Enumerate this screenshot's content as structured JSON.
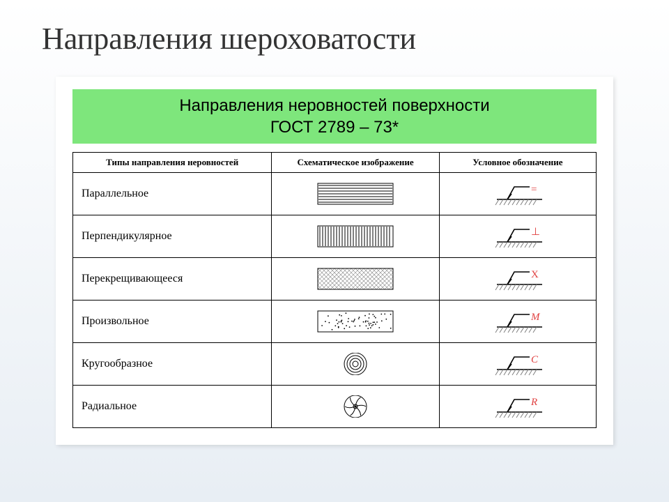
{
  "slide_title": "Направления шероховатости",
  "green_header_line1": "Направления неровностей поверхности",
  "green_header_line2": "ГОСТ 2789 – 73*",
  "columns": [
    "Типы направления неровностей",
    "Схематическое изображение",
    "Условное обозначение"
  ],
  "rows": [
    {
      "label": "Параллельное",
      "schematic": "horiz",
      "symbol_text": "=",
      "symbol_color": "#e04040"
    },
    {
      "label": "Перпендикулярное",
      "schematic": "vert",
      "symbol_text": "⊥",
      "symbol_color": "#e04040"
    },
    {
      "label": "Перекрещивающееся",
      "schematic": "cross",
      "symbol_text": "X",
      "symbol_color": "#e04040"
    },
    {
      "label": "Произвольное",
      "schematic": "dots",
      "symbol_text": "M",
      "symbol_color": "#e04040",
      "italic": true
    },
    {
      "label": "Кругообразное",
      "schematic": "circles",
      "symbol_text": "С",
      "symbol_color": "#e04040",
      "italic": true
    },
    {
      "label": "Радиальное",
      "schematic": "radial",
      "symbol_text": "R",
      "symbol_color": "#e04040",
      "italic": true
    }
  ],
  "colors": {
    "green_header_bg": "#7ee67c",
    "border": "#000000",
    "symbol_red": "#e04040",
    "ground_hatch": "#666666"
  }
}
